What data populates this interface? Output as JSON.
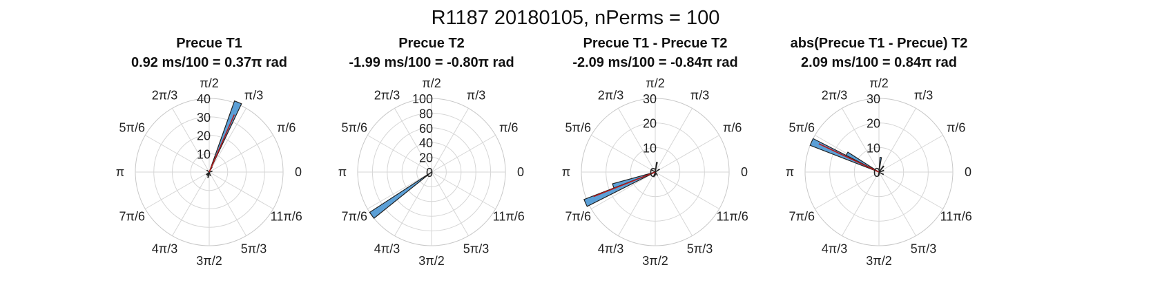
{
  "figure": {
    "title": "R1187 20180105, nPerms = 100"
  },
  "chart_data": [
    {
      "type": "polar-histogram",
      "title": "Precue T1",
      "subtitle": "0.92 ms/100 = 0.37π rad",
      "rlim": [
        0,
        40
      ],
      "rticks": [
        "10",
        "20",
        "30",
        "40"
      ],
      "theta_ticks": [
        "0",
        "π/6",
        "π/3",
        "π/2",
        "2π/3",
        "5π/6",
        "π",
        "7π/6",
        "4π/3",
        "3π/2",
        "5π/3",
        "11π/6"
      ],
      "bins": [
        {
          "theta": 1.18,
          "r": 41
        },
        {
          "theta": 1.08,
          "r": 3
        },
        {
          "theta": 4.25,
          "r": 2
        },
        {
          "theta": 4.5,
          "r": 3
        },
        {
          "theta": 5.0,
          "r": 2
        },
        {
          "theta": 3.9,
          "r": 2
        },
        {
          "theta": 2.5,
          "r": 1.5
        },
        {
          "theta": 0.2,
          "r": 1.5
        }
      ],
      "mean_line": {
        "theta": 1.16,
        "r": 34
      },
      "colors": {
        "bar": "#5b9fd6",
        "edge": "#222222",
        "mean": "#b31b1b",
        "grid": "#d6d6d6"
      }
    },
    {
      "type": "polar-histogram",
      "title": "Precue T2",
      "subtitle": "-1.99 ms/100 = -0.80π rad",
      "rlim": [
        0,
        100
      ],
      "rticks": [
        "0",
        "20",
        "40",
        "60",
        "80",
        "100"
      ],
      "theta_ticks": [
        "0",
        "π/6",
        "π/3",
        "π/2",
        "2π/3",
        "5π/6",
        "π",
        "7π/6",
        "4π/3",
        "3π/2",
        "5π/3",
        "11π/6"
      ],
      "bins": [
        {
          "theta": 3.77,
          "r": 100
        }
      ],
      "mean_line": {
        "theta": 3.77,
        "r": 0
      },
      "colors": {
        "bar": "#5b9fd6",
        "edge": "#222222",
        "mean": "#b31b1b",
        "grid": "#d6d6d6"
      }
    },
    {
      "type": "polar-histogram",
      "title": "Precue T1 - Precue T2",
      "subtitle": "-2.09 ms/100 = -0.84π rad",
      "rlim": [
        0,
        30
      ],
      "rticks": [
        "0",
        "10",
        "20",
        "30"
      ],
      "theta_ticks": [
        "0",
        "π/6",
        "π/3",
        "π/2",
        "2π/3",
        "5π/6",
        "π",
        "7π/6",
        "4π/3",
        "3π/2",
        "5π/3",
        "11π/6"
      ],
      "bins": [
        {
          "theta": 3.56,
          "r": 31
        },
        {
          "theta": 3.46,
          "r": 18
        },
        {
          "theta": 1.4,
          "r": 4
        },
        {
          "theta": 0.6,
          "r": 2
        },
        {
          "theta": 4.4,
          "r": 2
        },
        {
          "theta": 5.3,
          "r": 1.5
        },
        {
          "theta": 2.6,
          "r": 1.5
        }
      ],
      "mean_line": {
        "theta": 3.52,
        "r": 27
      },
      "colors": {
        "bar": "#5b9fd6",
        "edge": "#222222",
        "mean": "#b31b1b",
        "grid": "#d6d6d6"
      }
    },
    {
      "type": "polar-histogram",
      "title": "abs(Precue T1 - Precue) T2",
      "subtitle": "2.09 ms/100 = 0.84π rad",
      "rlim": [
        0,
        30
      ],
      "rticks": [
        "0",
        "10",
        "20",
        "30"
      ],
      "theta_ticks": [
        "0",
        "π/6",
        "π/3",
        "π/2",
        "2π/3",
        "5π/6",
        "π",
        "7π/6",
        "4π/3",
        "3π/2",
        "5π/3",
        "11π/6"
      ],
      "bins": [
        {
          "theta": 2.72,
          "r": 30
        },
        {
          "theta": 2.62,
          "r": 15
        },
        {
          "theta": 1.45,
          "r": 6
        },
        {
          "theta": 0.9,
          "r": 3
        },
        {
          "theta": 0.3,
          "r": 2
        },
        {
          "theta": 5.8,
          "r": 2
        },
        {
          "theta": 4.6,
          "r": 1.5
        }
      ],
      "mean_line": {
        "theta": 2.7,
        "r": 27
      },
      "colors": {
        "bar": "#5b9fd6",
        "edge": "#222222",
        "mean": "#b31b1b",
        "grid": "#d6d6d6"
      }
    }
  ]
}
